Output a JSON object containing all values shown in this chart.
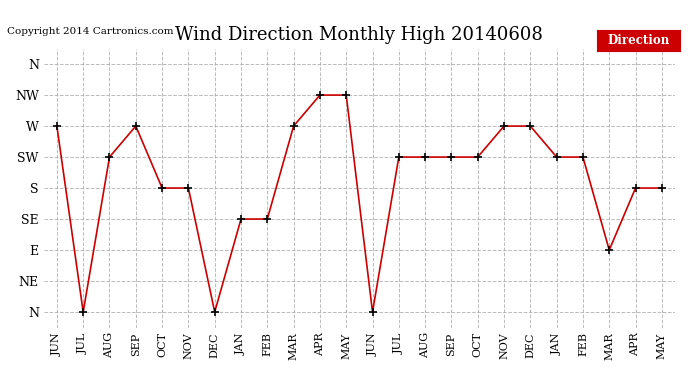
{
  "title": "Wind Direction Monthly High 20140608",
  "copyright": "Copyright 2014 Cartronics.com",
  "x_labels": [
    "JUN",
    "JUL",
    "AUG",
    "SEP",
    "OCT",
    "NOV",
    "DEC",
    "JAN",
    "FEB",
    "MAR",
    "APR",
    "MAY",
    "JUN",
    "JUL",
    "AUG",
    "SEP",
    "OCT",
    "NOV",
    "DEC",
    "JAN",
    "FEB",
    "MAR",
    "APR",
    "MAY"
  ],
  "y_labels": [
    "N",
    "NE",
    "E",
    "SE",
    "S",
    "SW",
    "W",
    "NW",
    "N"
  ],
  "y_values": [
    0,
    1,
    2,
    3,
    4,
    5,
    6,
    7,
    8
  ],
  "direction_data": [
    6,
    0,
    5,
    6,
    4,
    4,
    0,
    3,
    3,
    6,
    7,
    7,
    0,
    5,
    5,
    5,
    5,
    6,
    6,
    5,
    5,
    2,
    4,
    4
  ],
  "line_color": "#cc0000",
  "marker_color": "#000000",
  "grid_color": "#aaaaaa",
  "background_color": "#ffffff",
  "legend_label": "Direction",
  "legend_bg": "#cc0000",
  "legend_text_color": "#ffffff"
}
